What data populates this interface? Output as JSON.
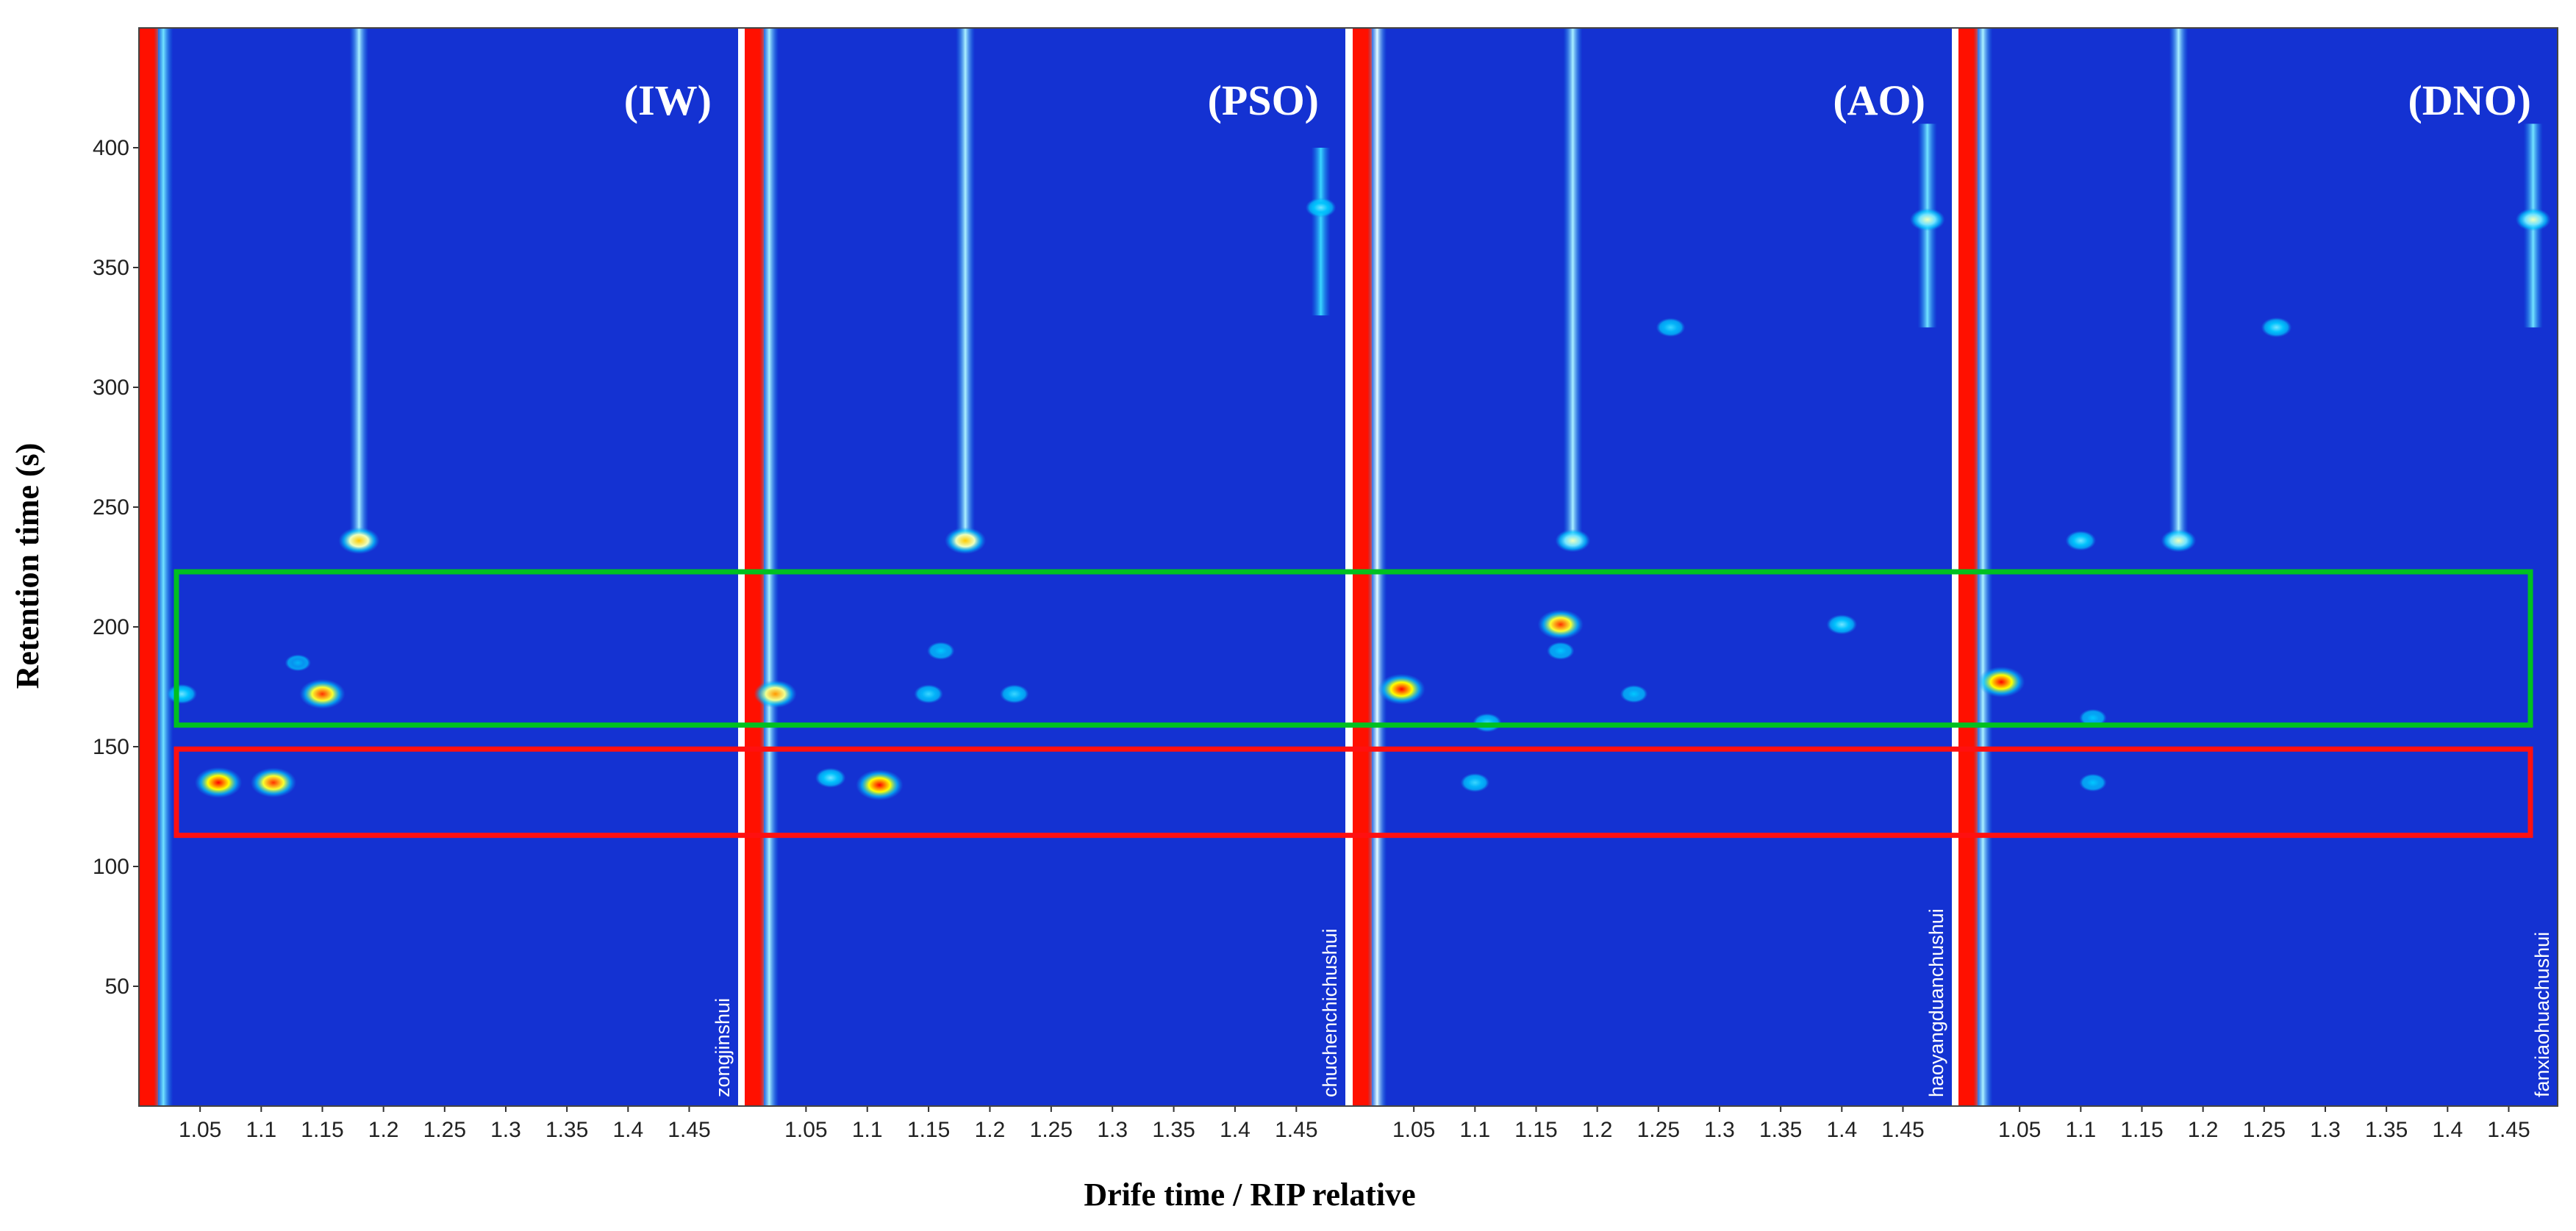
{
  "chart_data": {
    "type": "topographic",
    "xlabel": "Drife time / RIP relative",
    "ylabel": "Retention time (s)",
    "xlim": [
      1.0,
      1.49
    ],
    "ylim": [
      0,
      450
    ],
    "xticks": [
      1.05,
      1.1,
      1.15,
      1.2,
      1.25,
      1.3,
      1.35,
      1.4,
      1.45
    ],
    "yticks": [
      50,
      100,
      150,
      200,
      250,
      300,
      350,
      400
    ],
    "highlights": [
      {
        "color": "#00c020",
        "ylim": [
          159,
          223
        ]
      },
      {
        "color": "#ff1010",
        "ylim": [
          113,
          149
        ]
      }
    ],
    "panels": [
      {
        "label": "(IW)",
        "sample": "zongjinshui",
        "streaks": [
          {
            "x": 1.0,
            "intensity": 1.0,
            "from": 0,
            "to": 450
          },
          {
            "x": 1.02,
            "intensity": 0.45,
            "from": 0,
            "to": 450
          },
          {
            "x": 1.18,
            "intensity": 0.5,
            "from": 236,
            "to": 450
          }
        ],
        "spots": [
          {
            "x": 1.065,
            "y": 135,
            "intensity": 1.0
          },
          {
            "x": 1.11,
            "y": 135,
            "intensity": 0.95
          },
          {
            "x": 1.15,
            "y": 172,
            "intensity": 0.95
          },
          {
            "x": 1.035,
            "y": 172,
            "intensity": 0.45
          },
          {
            "x": 1.18,
            "y": 236,
            "intensity": 0.8
          },
          {
            "x": 1.13,
            "y": 185,
            "intensity": 0.3
          }
        ]
      },
      {
        "label": "(PSO)",
        "sample": "chuchenchichushui",
        "streaks": [
          {
            "x": 1.0,
            "intensity": 1.0,
            "from": 0,
            "to": 450
          },
          {
            "x": 1.02,
            "intensity": 0.5,
            "from": 0,
            "to": 450
          },
          {
            "x": 1.18,
            "intensity": 0.5,
            "from": 236,
            "to": 450
          },
          {
            "x": 1.47,
            "intensity": 0.4,
            "from": 330,
            "to": 400
          }
        ],
        "spots": [
          {
            "x": 1.025,
            "y": 172,
            "intensity": 0.85
          },
          {
            "x": 1.07,
            "y": 137,
            "intensity": 0.45
          },
          {
            "x": 1.11,
            "y": 134,
            "intensity": 1.0
          },
          {
            "x": 1.15,
            "y": 172,
            "intensity": 0.4
          },
          {
            "x": 1.22,
            "y": 172,
            "intensity": 0.4
          },
          {
            "x": 1.18,
            "y": 236,
            "intensity": 0.8
          },
          {
            "x": 1.16,
            "y": 190,
            "intensity": 0.35
          },
          {
            "x": 1.47,
            "y": 375,
            "intensity": 0.45
          }
        ]
      },
      {
        "label": "(AO)",
        "sample": "haoyangduanchushui",
        "streaks": [
          {
            "x": 1.0,
            "intensity": 1.0,
            "from": 0,
            "to": 450
          },
          {
            "x": 1.02,
            "intensity": 0.55,
            "from": 0,
            "to": 450
          },
          {
            "x": 1.18,
            "intensity": 0.5,
            "from": 236,
            "to": 450
          },
          {
            "x": 1.47,
            "intensity": 0.45,
            "from": 325,
            "to": 410
          }
        ],
        "spots": [
          {
            "x": 1.04,
            "y": 174,
            "intensity": 1.0
          },
          {
            "x": 1.17,
            "y": 201,
            "intensity": 0.95
          },
          {
            "x": 1.4,
            "y": 201,
            "intensity": 0.45
          },
          {
            "x": 1.11,
            "y": 160,
            "intensity": 0.4
          },
          {
            "x": 1.1,
            "y": 135,
            "intensity": 0.4
          },
          {
            "x": 1.18,
            "y": 236,
            "intensity": 0.6
          },
          {
            "x": 1.26,
            "y": 325,
            "intensity": 0.4
          },
          {
            "x": 1.47,
            "y": 370,
            "intensity": 0.6
          },
          {
            "x": 1.23,
            "y": 172,
            "intensity": 0.35
          },
          {
            "x": 1.17,
            "y": 190,
            "intensity": 0.35
          }
        ]
      },
      {
        "label": "(DNO)",
        "sample": "fanxiaohuachushui",
        "streaks": [
          {
            "x": 1.0,
            "intensity": 1.0,
            "from": 0,
            "to": 450
          },
          {
            "x": 1.02,
            "intensity": 0.5,
            "from": 0,
            "to": 450
          },
          {
            "x": 1.18,
            "intensity": 0.5,
            "from": 236,
            "to": 450
          },
          {
            "x": 1.47,
            "intensity": 0.45,
            "from": 325,
            "to": 410
          }
        ],
        "spots": [
          {
            "x": 1.035,
            "y": 177,
            "intensity": 1.0
          },
          {
            "x": 1.18,
            "y": 236,
            "intensity": 0.6
          },
          {
            "x": 1.1,
            "y": 236,
            "intensity": 0.45
          },
          {
            "x": 1.26,
            "y": 325,
            "intensity": 0.45
          },
          {
            "x": 1.47,
            "y": 370,
            "intensity": 0.6
          },
          {
            "x": 1.11,
            "y": 162,
            "intensity": 0.35
          },
          {
            "x": 1.11,
            "y": 135,
            "intensity": 0.35
          }
        ]
      }
    ]
  }
}
